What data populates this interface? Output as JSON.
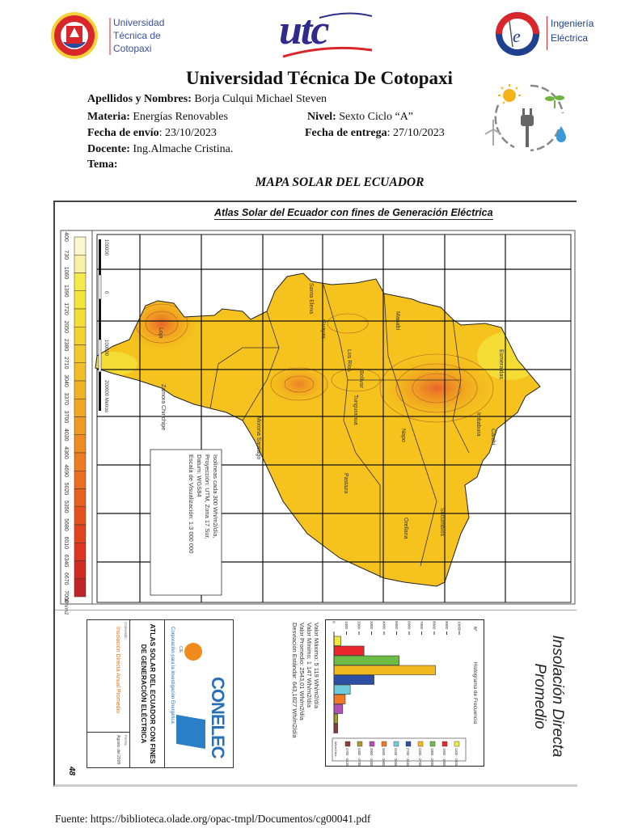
{
  "header": {
    "utc_logo_text": [
      "Universidad",
      "Técnica de",
      "Cotopaxi"
    ],
    "center_logo_text": "utc",
    "ie_logo_text": [
      "Ingeniería",
      "Eléctrica"
    ],
    "title": "Universidad Técnica De Cotopaxi",
    "fields": {
      "names_label": "Apellidos y Nombres:",
      "names_value": " Borja Culqui Michael Steven",
      "subject_label": "Materia:",
      "subject_value": " Energías Renovables",
      "level_label": "Nivel:",
      "level_value": " Sexto Ciclo “A”",
      "sent_label": "Fecha de envío",
      "sent_value": ": 23/10/2023",
      "due_label": "Fecha de entrega",
      "due_value": ": 27/10/2023",
      "teacher_label": "Docente:",
      "teacher_value": " Ing.Almache Cristina.",
      "topic_label": "Tema:"
    },
    "map_heading": "MAPA SOLAR DEL ECUADOR"
  },
  "map": {
    "title": "Atlas Solar del Ecuador con fines de Generación Eléctrica",
    "scale_unit": "Wh/m2/día",
    "scale_values": [
      400,
      730,
      1060,
      1390,
      1720,
      2050,
      2380,
      2710,
      3040,
      3370,
      3700,
      4030,
      4360,
      4690,
      5020,
      5350,
      5680,
      6010,
      6340,
      6670,
      7000
    ],
    "scale_colors": [
      "#fbf6cc",
      "#f8f0a4",
      "#f5ea4a",
      "#f4e43a",
      "#f3dc35",
      "#f3d22f",
      "#f2c82c",
      "#f2bd28",
      "#f1b226",
      "#f0a724",
      "#ef9a22",
      "#ee8c22",
      "#ec7e21",
      "#ea6e20",
      "#e8601f",
      "#e6521f",
      "#e2431f",
      "#dc3520",
      "#d02a22",
      "#c02328"
    ],
    "scalebar": [
      "100000",
      "0",
      "100000",
      "200000  Metros"
    ],
    "info_box": [
      "Isolíneas cada  300 Wh/m2/día,",
      "Proyección: UTM, Zona 17 Sur,",
      "Datum: WGS84",
      "Escala de Visualización: 1:3 000 000"
    ],
    "provinces": [
      "Santa Elena",
      "Guayas",
      "Manabí",
      "Los Ríos",
      "Bolívar",
      "Tungurahua",
      "Esmeraldas",
      "Imbabura",
      "Carchi",
      "Napo",
      "Pastaza",
      "Orellana",
      "Sucumbíos",
      "Morona Santiago",
      "Zamora Chinchipe",
      "Loja"
    ]
  },
  "lower": {
    "panel_title": [
      "Insolación Directa",
      "Promedio"
    ],
    "histogram": {
      "title": "Histograma de Frecuencia",
      "y_label": "N°",
      "ticks": [
        "10000",
        "9000",
        "8000",
        "7000",
        "6000",
        "5000",
        "4000",
        "3000",
        "2000",
        "1000",
        "0"
      ],
      "legend_title": "Wh/m2/día",
      "bins": [
        "1100 - 1500",
        "1500 - 1800",
        "1800 - 2200",
        "2200 - 2700",
        "2700 - 3100",
        "3100 - 3600",
        "3600 - 3900",
        "3900 - 4300",
        "4300 - 4700",
        "4700 - 5120"
      ],
      "values": [
        550,
        2400,
        5200,
        8100,
        3200,
        1300,
        900,
        700,
        300,
        300
      ],
      "colors": [
        "#f2e640",
        "#e8262b",
        "#6cbc45",
        "#f2b91f",
        "#2d4fa3",
        "#6fcbdc",
        "#f07a25",
        "#b44fb3",
        "#a89a2a",
        "#8b3b3b"
      ]
    },
    "stats": [
      "Valor Máximo: 5 119  Wh/m2/día",
      "Valor Mínimo: 1 147  Wh/m2/día",
      "Valor Promedio: 2543,01 Wh/m2/día",
      "Desviación Estándar: 643,1827 Wh/m2/día"
    ],
    "title_block": {
      "logo": "CONELEC",
      "cie": "CIE",
      "org": "Corporación para la Investigación Energética",
      "atlas_title": [
        "ATLAS SOLAR DEL ECUADOR CON FINES",
        "DE GENERACIÓN ELÉCTRICA"
      ],
      "content_label": "Contenido:",
      "content_value": "Insolación Directa Anual Promedio",
      "date_label": "Fecha:",
      "date_value": "Agosto del 2008"
    },
    "page_number": "48"
  },
  "footer": "Fuente: https://biblioteca.olade.org/opac-tmpl/Documentos/cg00041.pdf"
}
